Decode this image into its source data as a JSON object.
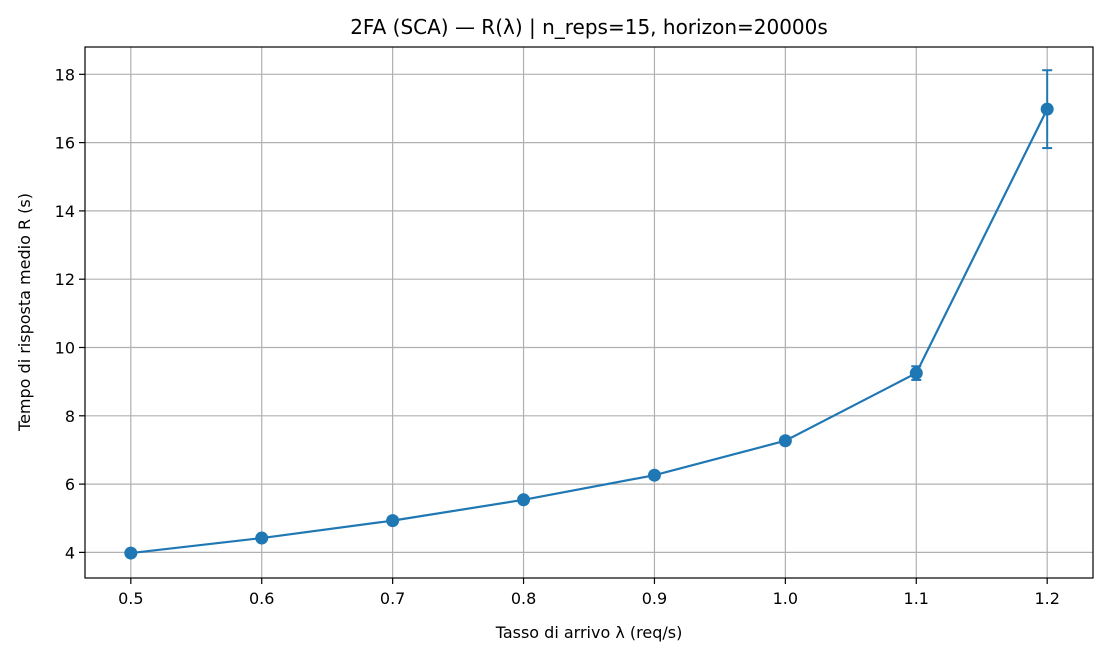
{
  "chart_data": {
    "type": "line",
    "title": "2FA (SCA) — R(λ)  |  n_reps=15, horizon=20000s",
    "xlabel": "Tasso di arrivo λ (req/s)",
    "ylabel": "Tempo di risposta medio R (s)",
    "xlim": [
      0.465,
      1.235
    ],
    "ylim": [
      3.25,
      18.8
    ],
    "xticks": [
      0.5,
      0.6,
      0.7,
      0.8,
      0.9,
      1.0,
      1.1,
      1.2
    ],
    "xtick_labels": [
      "0.5",
      "0.6",
      "0.7",
      "0.8",
      "0.9",
      "1.0",
      "1.1",
      "1.2"
    ],
    "yticks": [
      4,
      6,
      8,
      10,
      12,
      14,
      16,
      18
    ],
    "ytick_labels": [
      "4",
      "6",
      "8",
      "10",
      "12",
      "14",
      "16",
      "18"
    ],
    "grid": true,
    "series": [
      {
        "color": "#1f77b4",
        "marker": "circle",
        "x": [
          0.5,
          0.6,
          0.7,
          0.8,
          0.9,
          1.0,
          1.1,
          1.2
        ],
        "y": [
          3.98,
          4.42,
          4.93,
          5.54,
          6.26,
          7.27,
          9.25,
          16.98
        ],
        "yerr": [
          0.05,
          0.05,
          0.05,
          0.06,
          0.07,
          0.09,
          0.2,
          1.14
        ]
      }
    ]
  }
}
